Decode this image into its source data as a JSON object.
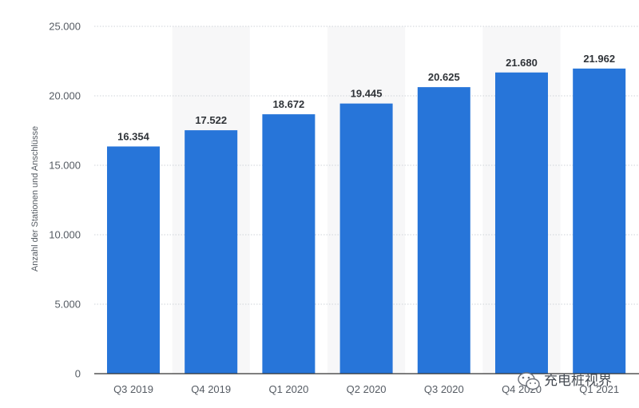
{
  "chart_data": {
    "type": "bar",
    "title": "",
    "xlabel": "",
    "ylabel": "Anzahl der Stationen und Anschlüsse",
    "categories": [
      "Q3 2019",
      "Q4 2019",
      "Q1 2020",
      "Q2 2020",
      "Q3 2020",
      "Q4 2020",
      "Q1 2021"
    ],
    "values": [
      16354,
      17522,
      18672,
      19445,
      20625,
      21680,
      21962
    ],
    "value_labels": [
      "16.354",
      "17.522",
      "18.672",
      "19.445",
      "20.625",
      "21.680",
      "21.962"
    ],
    "ylim": [
      0,
      25000
    ],
    "yticks": [
      0,
      5000,
      10000,
      15000,
      20000,
      25000
    ],
    "ytick_labels": [
      "0",
      "5.000",
      "10.000",
      "15.000",
      "20.000",
      "25.000"
    ],
    "grid": true,
    "bar_color": "#2775d9",
    "legend": "none"
  },
  "watermark": {
    "text": "充电桩视界",
    "icon": "wechat-icon"
  }
}
